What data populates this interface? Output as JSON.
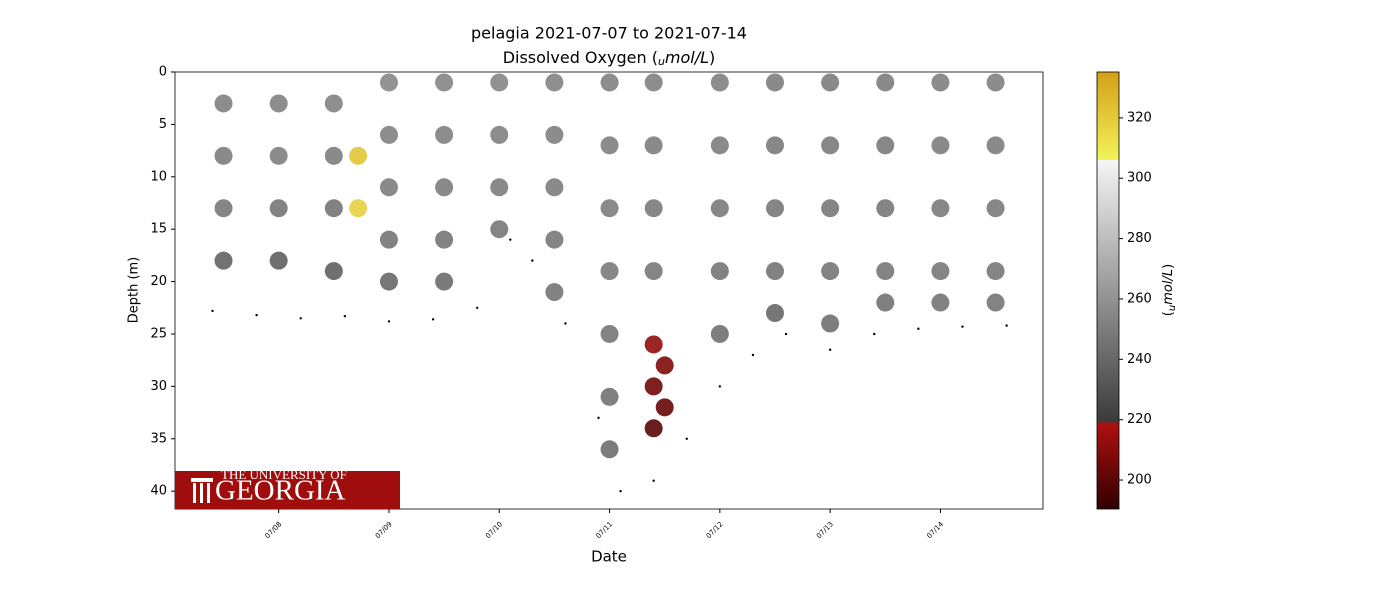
{
  "chart_data": {
    "type": "scatter",
    "title": "pelagia 2021-07-07 to 2021-07-14",
    "subtitle": [
      "Dissolved Oxygen (",
      "u",
      "mol/L",
      ")"
    ],
    "xlabel": "Date",
    "ylabel": "Depth (m)",
    "colorbar_label": [
      "(",
      "u",
      "mol/L",
      ")"
    ],
    "xlim": [
      7.06,
      14.93
    ],
    "xticks": [
      {
        "value": 8,
        "label": "07/08"
      },
      {
        "value": 9,
        "label": "07/09"
      },
      {
        "value": 10,
        "label": "07/10"
      },
      {
        "value": 11,
        "label": "07/11"
      },
      {
        "value": 12,
        "label": "07/12"
      },
      {
        "value": 13,
        "label": "07/13"
      },
      {
        "value": 14,
        "label": "07/14"
      }
    ],
    "ylim": [
      0,
      41.7
    ],
    "y_inverted": true,
    "yticks": [
      0,
      5,
      10,
      15,
      20,
      25,
      30,
      35,
      40
    ],
    "clim": [
      190.4,
      335.2
    ],
    "cticks": [
      200,
      220,
      240,
      260,
      280,
      300,
      320
    ],
    "colormap": [
      [
        190.4,
        "#300000"
      ],
      [
        219,
        "#b01010"
      ],
      [
        219,
        "#3a3a3a"
      ],
      [
        306,
        "#f5f5f5"
      ],
      [
        306,
        "#f2f25a"
      ],
      [
        335.2,
        "#d4a017"
      ]
    ],
    "points": {
      "x": [
        7.5,
        7.5,
        7.5,
        7.5,
        8.0,
        8.0,
        8.0,
        8.0,
        8.5,
        8.5,
        8.5,
        8.5,
        8.72,
        8.72,
        9.0,
        9.0,
        9.0,
        9.0,
        9.0,
        9.5,
        9.5,
        9.5,
        9.5,
        9.5,
        10.0,
        10.0,
        10.0,
        10.0,
        10.5,
        10.5,
        10.5,
        10.5,
        10.5,
        11.0,
        11.0,
        11.0,
        11.0,
        11.0,
        11.0,
        11.0,
        11.4,
        11.4,
        11.4,
        11.4,
        11.4,
        11.4,
        11.4,
        11.5,
        11.5,
        12.0,
        12.0,
        12.0,
        12.0,
        12.0,
        12.5,
        12.5,
        12.5,
        12.5,
        12.5,
        13.0,
        13.0,
        13.0,
        13.0,
        13.0,
        13.5,
        13.5,
        13.5,
        13.5,
        13.5,
        14.0,
        14.0,
        14.0,
        14.0,
        14.0,
        14.5,
        14.5,
        14.5,
        14.5,
        14.5
      ],
      "y": [
        3,
        8,
        13,
        18,
        3,
        8,
        13,
        18,
        3,
        8,
        13,
        19,
        8,
        13,
        1,
        6,
        11,
        16,
        20,
        1,
        6,
        11,
        16,
        20,
        1,
        6,
        11,
        15,
        1,
        6,
        11,
        16,
        21,
        1,
        7,
        13,
        19,
        25,
        31,
        36,
        1,
        7,
        13,
        19,
        26,
        30,
        34,
        28,
        32,
        1,
        7,
        13,
        19,
        25,
        1,
        7,
        13,
        19,
        23,
        1,
        7,
        13,
        19,
        24,
        1,
        7,
        13,
        19,
        22,
        1,
        7,
        13,
        19,
        22,
        1,
        7,
        13,
        19,
        22
      ],
      "c": [
        252,
        250,
        248,
        238,
        252,
        251,
        247,
        236,
        253,
        250,
        246,
        237,
        322,
        318,
        255,
        252,
        250,
        246,
        240,
        254,
        252,
        250,
        247,
        242,
        254,
        252,
        250,
        248,
        253,
        251,
        250,
        248,
        246,
        252,
        251,
        250,
        249,
        247,
        245,
        243,
        252,
        250,
        249,
        248,
        212,
        205,
        200,
        208,
        203,
        251,
        250,
        249,
        247,
        244,
        250,
        249,
        248,
        246,
        240,
        250,
        249,
        248,
        247,
        244,
        250,
        249,
        248,
        247,
        245,
        251,
        250,
        249,
        248,
        246,
        251,
        250,
        249,
        248,
        247
      ]
    },
    "bottom": {
      "color": "#000000",
      "x": [
        7.4,
        7.8,
        8.2,
        8.6,
        9.0,
        9.4,
        9.8,
        10.1,
        10.3,
        10.6,
        10.9,
        11.1,
        11.4,
        11.7,
        12.0,
        12.3,
        12.6,
        13.0,
        13.4,
        13.8,
        14.2,
        14.6
      ],
      "y": [
        22.8,
        23.2,
        23.5,
        23.3,
        23.8,
        23.6,
        22.5,
        16,
        18,
        24,
        33,
        40,
        39,
        35,
        30,
        27,
        25,
        26.5,
        25,
        24.5,
        24.3,
        24.2
      ]
    }
  },
  "logo": {
    "line1": "THE UNIVERSITY OF",
    "line2": "GEORGIA"
  }
}
